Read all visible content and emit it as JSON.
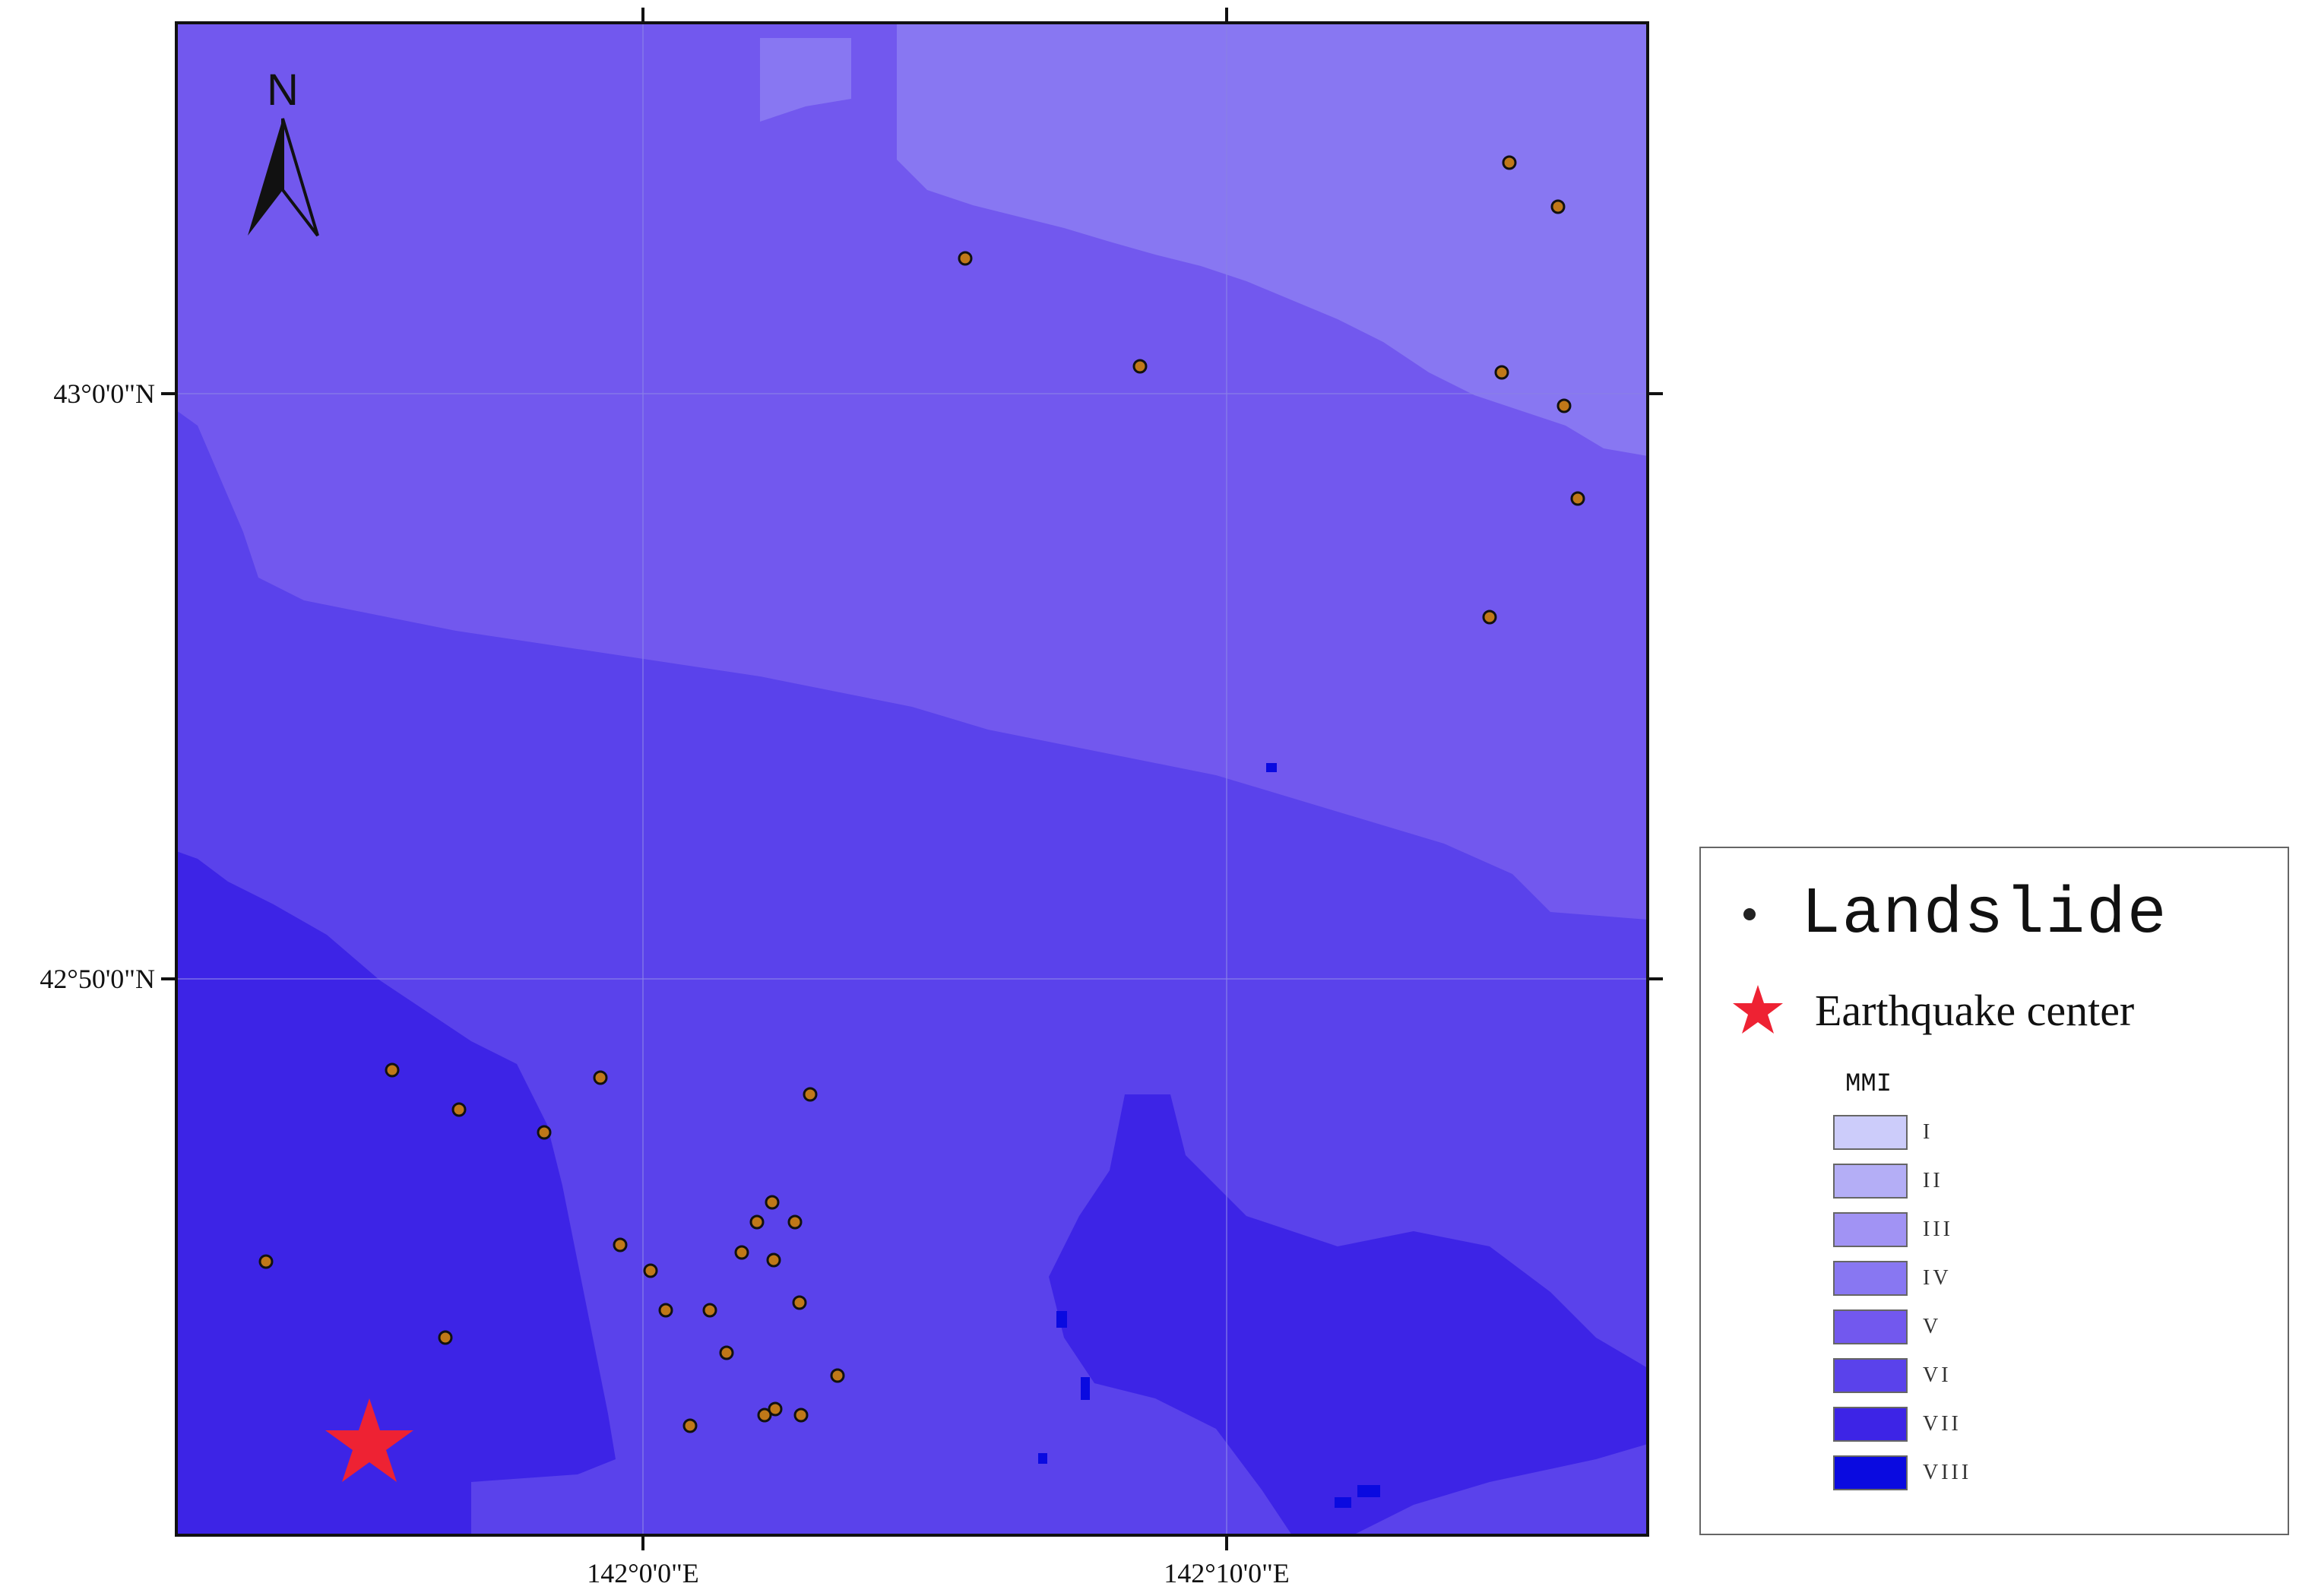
{
  "map": {
    "axes": {
      "x_ticks": [
        "142°0'0\"E",
        "142°10'0\"E"
      ],
      "y_ticks": [
        "43°0'0\"N",
        "42°50'0\"N"
      ]
    },
    "north_arrow_label": "N",
    "colors": {
      "mmi_iv": "#8877F2",
      "mmi_v": "#7258EE",
      "mmi_vi": "#5A42EB",
      "mmi_vii": "#3D24E6",
      "mmi_viii": "#0A0AE0",
      "landslide_fill": "#C07818",
      "epicenter": "#EE2233"
    },
    "landslides_count_note": "",
    "zones_visible": [
      "IV",
      "V",
      "VI",
      "VII",
      "VIII"
    ]
  },
  "legend": {
    "landslide_label": "Landslide",
    "earthquake_label": "Earthquake center",
    "mmi_title": "MMI",
    "mmi_classes": [
      {
        "label": "I",
        "color": "#CCCCFA"
      },
      {
        "label": "II",
        "color": "#B4AEF6"
      },
      {
        "label": "III",
        "color": "#A193F4"
      },
      {
        "label": "IV",
        "color": "#8877F2"
      },
      {
        "label": "V",
        "color": "#7258EE"
      },
      {
        "label": "VI",
        "color": "#5A42EB"
      },
      {
        "label": "VII",
        "color": "#3D24E6"
      },
      {
        "label": "VIII",
        "color": "#0A0AE0"
      }
    ]
  }
}
